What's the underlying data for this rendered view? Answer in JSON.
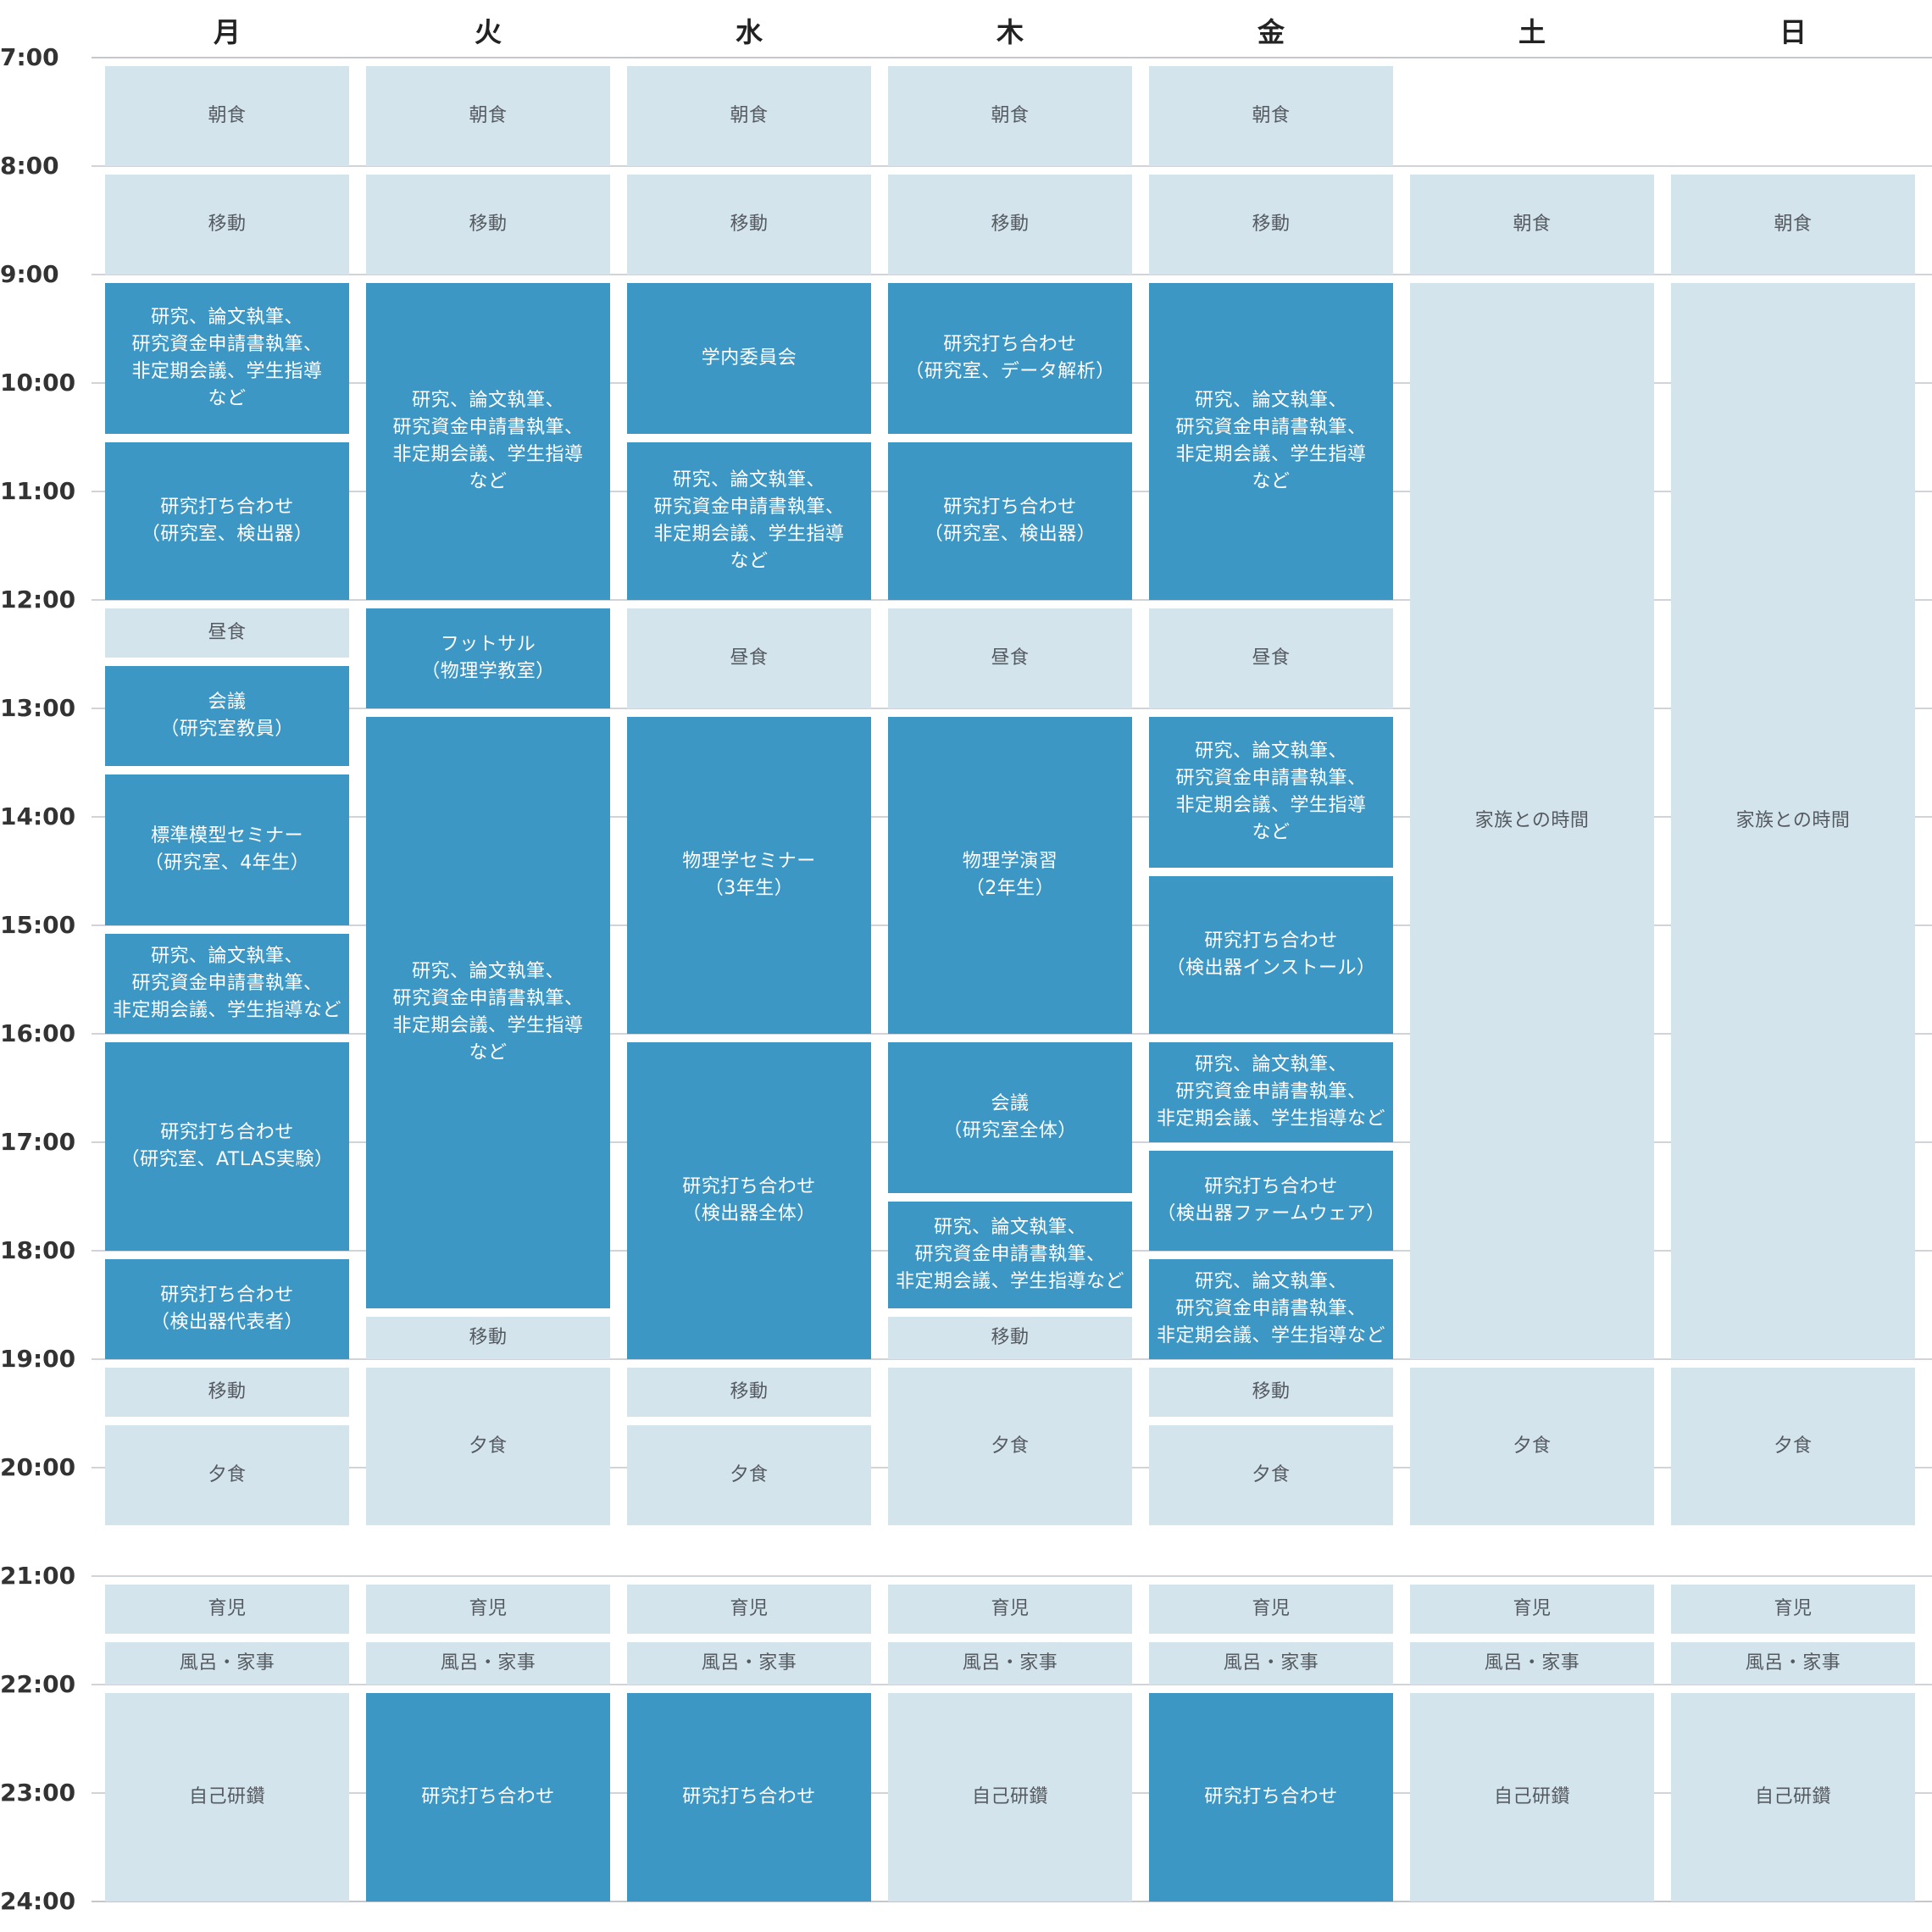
{
  "days": [
    "月",
    "火",
    "水",
    "木",
    "金",
    "土",
    "日"
  ],
  "hours": [
    "7:00",
    "8:00",
    "9:00",
    "10:00",
    "11:00",
    "12:00",
    "13:00",
    "14:00",
    "15:00",
    "16:00",
    "17:00",
    "18:00",
    "19:00",
    "20:00",
    "21:00",
    "22:00",
    "23:00",
    "24:00"
  ],
  "colors": {
    "light": "#d4e4ec",
    "dark": "#3d97c5",
    "grid": "#d0d4d8"
  },
  "events": [
    {
      "day": 0,
      "start": 7.0,
      "end": 8.0,
      "text": "朝食",
      "kind": "light"
    },
    {
      "day": 0,
      "start": 8.0,
      "end": 9.0,
      "text": "移動",
      "kind": "light"
    },
    {
      "day": 0,
      "start": 9.0,
      "end": 10.47,
      "text": "研究、論文執筆、\n研究資金申請書執筆、\n非定期会議、学生指導\nなど",
      "kind": "dark"
    },
    {
      "day": 0,
      "start": 10.47,
      "end": 12.0,
      "text": "研究打ち合わせ\n（研究室、検出器）",
      "kind": "dark"
    },
    {
      "day": 0,
      "start": 12.0,
      "end": 12.53,
      "text": "昼食",
      "kind": "light"
    },
    {
      "day": 0,
      "start": 12.53,
      "end": 13.53,
      "text": "会議\n（研究室教員）",
      "kind": "dark"
    },
    {
      "day": 0,
      "start": 13.53,
      "end": 15.0,
      "text": "標準模型セミナー\n（研究室、4年生）",
      "kind": "dark"
    },
    {
      "day": 0,
      "start": 15.0,
      "end": 16.0,
      "text": "研究、論文執筆、\n研究資金申請書執筆、\n非定期会議、学生指導など",
      "kind": "dark"
    },
    {
      "day": 0,
      "start": 16.0,
      "end": 18.0,
      "text": "研究打ち合わせ\n（研究室、ATLAS実験）",
      "kind": "dark"
    },
    {
      "day": 0,
      "start": 18.0,
      "end": 19.0,
      "text": "研究打ち合わせ\n（検出器代表者）",
      "kind": "dark"
    },
    {
      "day": 0,
      "start": 19.0,
      "end": 19.53,
      "text": "移動",
      "kind": "light"
    },
    {
      "day": 0,
      "start": 19.53,
      "end": 20.53,
      "text": "夕食",
      "kind": "light"
    },
    {
      "day": 0,
      "start": 21.0,
      "end": 21.53,
      "text": "育児",
      "kind": "light"
    },
    {
      "day": 0,
      "start": 21.53,
      "end": 22.0,
      "text": "風呂・家事",
      "kind": "light"
    },
    {
      "day": 0,
      "start": 22.0,
      "end": 24.0,
      "text": "自己研鑽",
      "kind": "light"
    },
    {
      "day": 1,
      "start": 7.0,
      "end": 8.0,
      "text": "朝食",
      "kind": "light"
    },
    {
      "day": 1,
      "start": 8.0,
      "end": 9.0,
      "text": "移動",
      "kind": "light"
    },
    {
      "day": 1,
      "start": 9.0,
      "end": 12.0,
      "text": "研究、論文執筆、\n研究資金申請書執筆、\n非定期会議、学生指導\nなど",
      "kind": "dark"
    },
    {
      "day": 1,
      "start": 12.0,
      "end": 13.0,
      "text": "フットサル\n（物理学教室）",
      "kind": "dark"
    },
    {
      "day": 1,
      "start": 13.0,
      "end": 18.53,
      "text": "研究、論文執筆、\n研究資金申請書執筆、\n非定期会議、学生指導\nなど",
      "kind": "dark"
    },
    {
      "day": 1,
      "start": 18.53,
      "end": 19.0,
      "text": "移動",
      "kind": "light"
    },
    {
      "day": 1,
      "start": 19.0,
      "end": 20.53,
      "text": "夕食",
      "kind": "light"
    },
    {
      "day": 1,
      "start": 21.0,
      "end": 21.53,
      "text": "育児",
      "kind": "light"
    },
    {
      "day": 1,
      "start": 21.53,
      "end": 22.0,
      "text": "風呂・家事",
      "kind": "light"
    },
    {
      "day": 1,
      "start": 22.0,
      "end": 24.0,
      "text": "研究打ち合わせ",
      "kind": "dark"
    },
    {
      "day": 2,
      "start": 7.0,
      "end": 8.0,
      "text": "朝食",
      "kind": "light"
    },
    {
      "day": 2,
      "start": 8.0,
      "end": 9.0,
      "text": "移動",
      "kind": "light"
    },
    {
      "day": 2,
      "start": 9.0,
      "end": 10.47,
      "text": "学内委員会",
      "kind": "dark"
    },
    {
      "day": 2,
      "start": 10.47,
      "end": 12.0,
      "text": "研究、論文執筆、\n研究資金申請書執筆、\n非定期会議、学生指導\nなど",
      "kind": "dark"
    },
    {
      "day": 2,
      "start": 12.0,
      "end": 13.0,
      "text": "昼食",
      "kind": "light"
    },
    {
      "day": 2,
      "start": 13.0,
      "end": 16.0,
      "text": "物理学セミナー\n（3年生）",
      "kind": "dark"
    },
    {
      "day": 2,
      "start": 16.0,
      "end": 19.0,
      "text": "研究打ち合わせ\n（検出器全体）",
      "kind": "dark"
    },
    {
      "day": 2,
      "start": 19.0,
      "end": 19.53,
      "text": "移動",
      "kind": "light"
    },
    {
      "day": 2,
      "start": 19.53,
      "end": 20.53,
      "text": "夕食",
      "kind": "light"
    },
    {
      "day": 2,
      "start": 21.0,
      "end": 21.53,
      "text": "育児",
      "kind": "light"
    },
    {
      "day": 2,
      "start": 21.53,
      "end": 22.0,
      "text": "風呂・家事",
      "kind": "light"
    },
    {
      "day": 2,
      "start": 22.0,
      "end": 24.0,
      "text": "研究打ち合わせ",
      "kind": "dark"
    },
    {
      "day": 3,
      "start": 7.0,
      "end": 8.0,
      "text": "朝食",
      "kind": "light"
    },
    {
      "day": 3,
      "start": 8.0,
      "end": 9.0,
      "text": "移動",
      "kind": "light"
    },
    {
      "day": 3,
      "start": 9.0,
      "end": 10.47,
      "text": "研究打ち合わせ\n（研究室、データ解析）",
      "kind": "dark"
    },
    {
      "day": 3,
      "start": 10.47,
      "end": 12.0,
      "text": "研究打ち合わせ\n（研究室、検出器）",
      "kind": "dark"
    },
    {
      "day": 3,
      "start": 12.0,
      "end": 13.0,
      "text": "昼食",
      "kind": "light"
    },
    {
      "day": 3,
      "start": 13.0,
      "end": 16.0,
      "text": "物理学演習\n（2年生）",
      "kind": "dark"
    },
    {
      "day": 3,
      "start": 16.0,
      "end": 17.47,
      "text": "会議\n（研究室全体）",
      "kind": "dark"
    },
    {
      "day": 3,
      "start": 17.47,
      "end": 18.53,
      "text": "研究、論文執筆、\n研究資金申請書執筆、\n非定期会議、学生指導など",
      "kind": "dark"
    },
    {
      "day": 3,
      "start": 18.53,
      "end": 19.0,
      "text": "移動",
      "kind": "light"
    },
    {
      "day": 3,
      "start": 19.0,
      "end": 20.53,
      "text": "夕食",
      "kind": "light"
    },
    {
      "day": 3,
      "start": 21.0,
      "end": 21.53,
      "text": "育児",
      "kind": "light"
    },
    {
      "day": 3,
      "start": 21.53,
      "end": 22.0,
      "text": "風呂・家事",
      "kind": "light"
    },
    {
      "day": 3,
      "start": 22.0,
      "end": 24.0,
      "text": "自己研鑽",
      "kind": "light"
    },
    {
      "day": 4,
      "start": 7.0,
      "end": 8.0,
      "text": "朝食",
      "kind": "light"
    },
    {
      "day": 4,
      "start": 8.0,
      "end": 9.0,
      "text": "移動",
      "kind": "light"
    },
    {
      "day": 4,
      "start": 9.0,
      "end": 12.0,
      "text": "研究、論文執筆、\n研究資金申請書執筆、\n非定期会議、学生指導\nなど",
      "kind": "dark"
    },
    {
      "day": 4,
      "start": 12.0,
      "end": 13.0,
      "text": "昼食",
      "kind": "light"
    },
    {
      "day": 4,
      "start": 13.0,
      "end": 14.47,
      "text": "研究、論文執筆、\n研究資金申請書執筆、\n非定期会議、学生指導\nなど",
      "kind": "dark"
    },
    {
      "day": 4,
      "start": 14.47,
      "end": 16.0,
      "text": "研究打ち合わせ\n（検出器インストール）",
      "kind": "dark"
    },
    {
      "day": 4,
      "start": 16.0,
      "end": 17.0,
      "text": "研究、論文執筆、\n研究資金申請書執筆、\n非定期会議、学生指導など",
      "kind": "dark"
    },
    {
      "day": 4,
      "start": 17.0,
      "end": 18.0,
      "text": "研究打ち合わせ\n（検出器ファームウェア）",
      "kind": "dark"
    },
    {
      "day": 4,
      "start": 18.0,
      "end": 19.0,
      "text": "研究、論文執筆、\n研究資金申請書執筆、\n非定期会議、学生指導など",
      "kind": "dark"
    },
    {
      "day": 4,
      "start": 19.0,
      "end": 19.53,
      "text": "移動",
      "kind": "light"
    },
    {
      "day": 4,
      "start": 19.53,
      "end": 20.53,
      "text": "夕食",
      "kind": "light"
    },
    {
      "day": 4,
      "start": 21.0,
      "end": 21.53,
      "text": "育児",
      "kind": "light"
    },
    {
      "day": 4,
      "start": 21.53,
      "end": 22.0,
      "text": "風呂・家事",
      "kind": "light"
    },
    {
      "day": 4,
      "start": 22.0,
      "end": 24.0,
      "text": "研究打ち合わせ",
      "kind": "dark"
    },
    {
      "day": 5,
      "start": 8.0,
      "end": 9.0,
      "text": "朝食",
      "kind": "light"
    },
    {
      "day": 5,
      "start": 9.0,
      "end": 19.0,
      "text": "家族との時間",
      "kind": "light"
    },
    {
      "day": 5,
      "start": 19.0,
      "end": 20.53,
      "text": "夕食",
      "kind": "light"
    },
    {
      "day": 5,
      "start": 21.0,
      "end": 21.53,
      "text": "育児",
      "kind": "light"
    },
    {
      "day": 5,
      "start": 21.53,
      "end": 22.0,
      "text": "風呂・家事",
      "kind": "light"
    },
    {
      "day": 5,
      "start": 22.0,
      "end": 24.0,
      "text": "自己研鑽",
      "kind": "light"
    },
    {
      "day": 6,
      "start": 8.0,
      "end": 9.0,
      "text": "朝食",
      "kind": "light"
    },
    {
      "day": 6,
      "start": 9.0,
      "end": 19.0,
      "text": "家族との時間",
      "kind": "light"
    },
    {
      "day": 6,
      "start": 19.0,
      "end": 20.53,
      "text": "夕食",
      "kind": "light"
    },
    {
      "day": 6,
      "start": 21.0,
      "end": 21.53,
      "text": "育児",
      "kind": "light"
    },
    {
      "day": 6,
      "start": 21.53,
      "end": 22.0,
      "text": "風呂・家事",
      "kind": "light"
    },
    {
      "day": 6,
      "start": 22.0,
      "end": 24.0,
      "text": "自己研鑽",
      "kind": "light"
    }
  ]
}
